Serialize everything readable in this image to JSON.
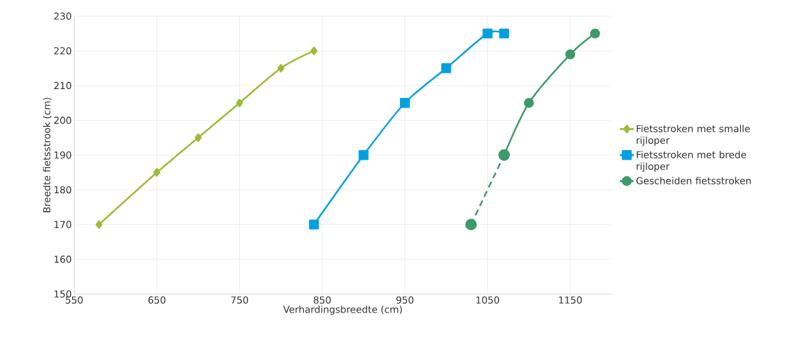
{
  "chart_data": {
    "type": "line",
    "xlabel": "Verhardingsbreedte (cm)",
    "ylabel": "Breedte fietsstrook (cm)",
    "xlim": [
      550,
      1200
    ],
    "ylim": [
      150,
      230
    ],
    "xticks": [
      550,
      650,
      750,
      850,
      950,
      1050,
      1150
    ],
    "yticks": [
      150,
      160,
      170,
      180,
      190,
      200,
      210,
      220,
      230
    ],
    "grid": true,
    "legend": "right",
    "series": [
      {
        "name": "Fietsstroken met smalle rijloper",
        "color": "#9bbb33",
        "marker": "diamond",
        "line_style": "solid",
        "x": [
          580,
          650,
          700,
          750,
          800,
          840
        ],
        "values": [
          170,
          185,
          195,
          205,
          215,
          220
        ]
      },
      {
        "name": "Fietsstroken met brede rijloper",
        "color": "#00a0e0",
        "marker": "square",
        "line_style": "solid",
        "x": [
          840,
          900,
          950,
          1000,
          1050,
          1070
        ],
        "values": [
          170,
          190,
          205,
          215,
          225,
          225
        ]
      },
      {
        "name": "Gescheiden fietsstroken",
        "color": "#3d9a6a",
        "marker": "circle",
        "line_style": "solid",
        "x": [
          1070,
          1100,
          1150,
          1180
        ],
        "values": [
          190,
          205,
          219,
          225
        ]
      },
      {
        "color": "#3d9a6a",
        "marker": "circle",
        "line_style": "dashed",
        "x": [
          1030,
          1070
        ],
        "values": [
          170,
          190
        ]
      }
    ]
  }
}
